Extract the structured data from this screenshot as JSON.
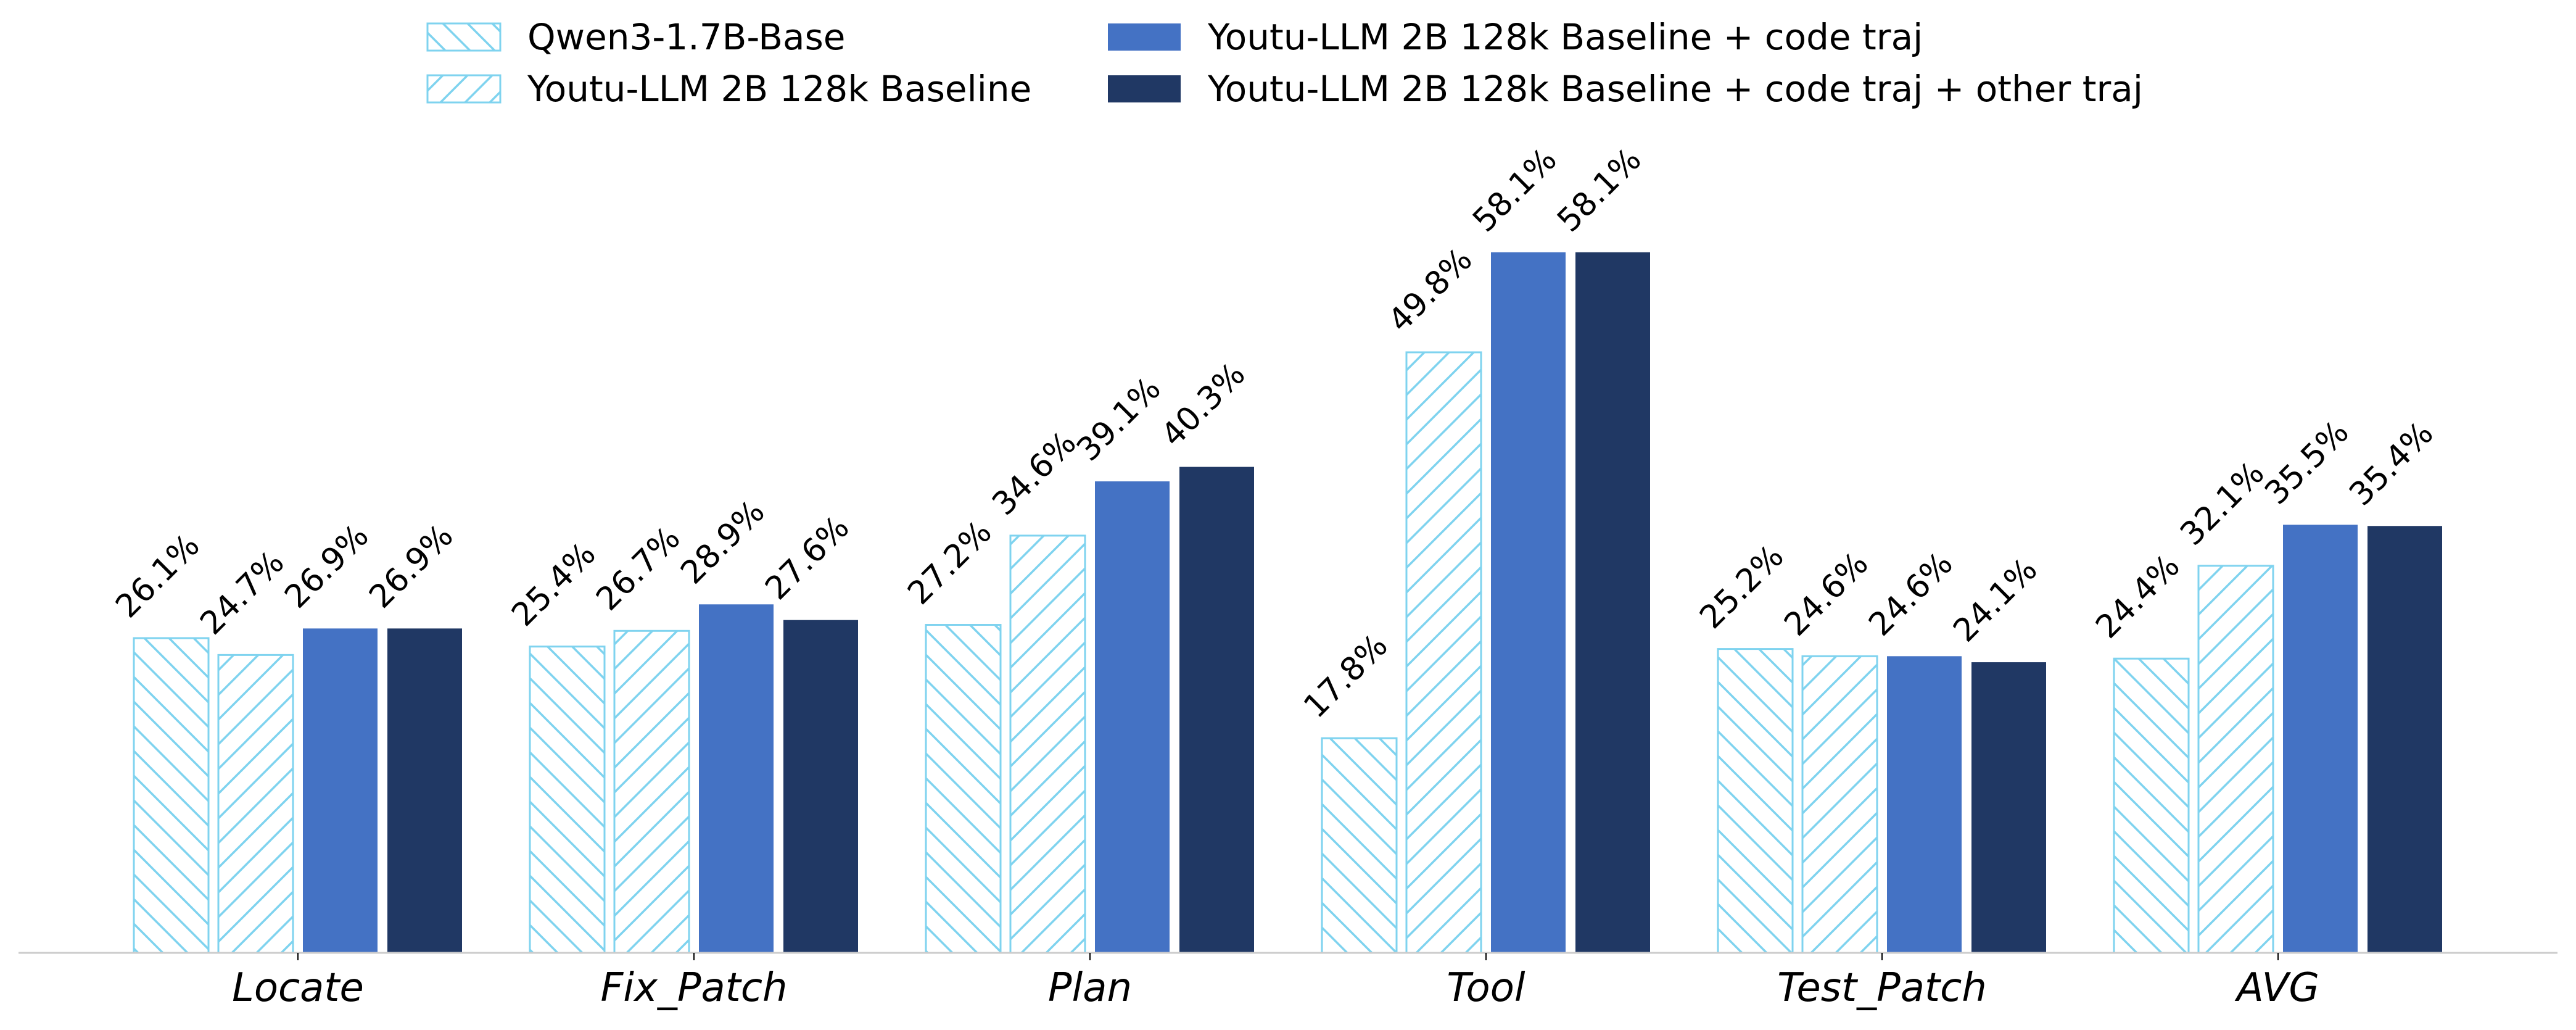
{
  "chart_data": {
    "type": "bar",
    "title": "",
    "xlabel": "",
    "ylabel": "",
    "categories": [
      "Locate",
      "Fix_Patch",
      "Plan",
      "Tool",
      "Test_Patch",
      "AVG"
    ],
    "ylim": [
      0,
      62
    ],
    "value_suffix": "%",
    "grid": false,
    "legend_position": "top-center",
    "series": [
      {
        "name": "Qwen3-1.7B-Base",
        "values": [
          26.1,
          25.4,
          27.2,
          17.8,
          25.2,
          24.4
        ],
        "labels": [
          "26.1",
          "25.4",
          "27.2",
          "17.8",
          "25.2",
          "24.4"
        ],
        "style": "hatch-backslash",
        "color": "#7fd3ef"
      },
      {
        "name": "Youtu-LLM 2B 128k Baseline",
        "values": [
          24.7,
          26.7,
          34.6,
          49.8,
          24.6,
          32.1
        ],
        "labels": [
          "24.7",
          "26.7",
          "34.6",
          "49.8",
          "24.6",
          "32.1"
        ],
        "style": "hatch-slash",
        "color": "#7fd3ef"
      },
      {
        "name": "Youtu-LLM 2B 128k Baseline + code traj",
        "values": [
          26.9,
          28.9,
          39.1,
          58.1,
          24.6,
          35.5
        ],
        "labels": [
          "26.9",
          "28.9",
          "39.1",
          "58.1",
          "24.6",
          "35.5"
        ],
        "style": "solid",
        "color": "#4472c4"
      },
      {
        "name": "Youtu-LLM 2B 128k Baseline + code traj + other traj",
        "values": [
          26.9,
          27.6,
          40.3,
          58.1,
          24.1,
          35.4
        ],
        "labels": [
          "26.9",
          "27.6",
          "40.3",
          "58.1",
          "24.1",
          "35.4"
        ],
        "style": "solid",
        "color": "#203864"
      }
    ]
  }
}
